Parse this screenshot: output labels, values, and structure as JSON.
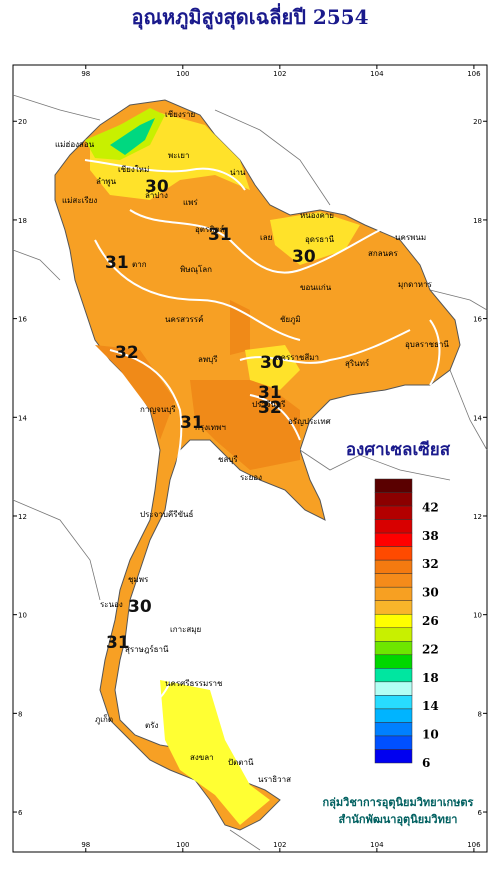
{
  "title": "อุณหภูมิสูงสุดเฉลี่ยปี 2554",
  "map": {
    "xlim": [
      96.5,
      106.27
    ],
    "ylim": [
      5.19,
      21.14
    ],
    "xticks": [
      98,
      100,
      102,
      104,
      106
    ],
    "yticks": [
      6,
      8,
      10,
      12,
      14,
      16,
      18,
      20
    ]
  },
  "legend": {
    "title": "องศาเซลเซียส",
    "colors": [
      "#5a0000",
      "#8b0000",
      "#b30000",
      "#d80000",
      "#ff0000",
      "#ff4a00",
      "#f47a10",
      "#f58b1a",
      "#f7a022",
      "#f9b52a",
      "#ffff00",
      "#c8f000",
      "#6ee600",
      "#00d700",
      "#00e6a0",
      "#b4fff5",
      "#28dcff",
      "#00b4ff",
      "#0080ff",
      "#0050ff",
      "#0000f0"
    ],
    "labels": [
      42,
      38,
      32,
      30,
      26,
      22,
      18,
      14,
      10,
      6
    ]
  },
  "credits": [
    "กลุ่มวิชาการอุตุนิยมวิทยาเกษตร",
    "สำนักพัฒนาอุตุนิยมวิทยา"
  ],
  "places": [
    "เชียงราย",
    "แม่ฮ่องสอน",
    "เชียงใหม่",
    "ลำพูน",
    "ลำปาง",
    "พะเยา",
    "น่าน",
    "แพร่",
    "แม่สะเรียง",
    "อุตรดิตถ์",
    "หนองคาย",
    "อุดรธานี",
    "เลย",
    "สกลนคร",
    "นครพนม",
    "มุกดาหาร",
    "ขอนแก่น",
    "ตาก",
    "พิษณุโลก",
    "ชัยภูมิ",
    "นครสวรรค์",
    "อุบลราชธานี",
    "นครราชสีมา",
    "สุรินทร์",
    "ลพบุรี",
    "กาญจนบุรี",
    "กรุงเทพฯ",
    "ปราจีนบุรี",
    "อรัญประเทศ",
    "ชลบุรี",
    "ระยอง",
    "ประจวบคีรีขันธ์",
    "ชุมพร",
    "ระนอง",
    "สุราษฎร์ธานี",
    "เกาะสมุย",
    "นครศรีธรรมราช",
    "ภูเก็ต",
    "ตรัง",
    "สงขลา",
    "ปัตตานี",
    "นราธิวาส"
  ],
  "contour_labels": [
    30,
    31,
    31,
    30,
    32,
    30,
    31,
    32,
    31,
    30,
    31
  ]
}
